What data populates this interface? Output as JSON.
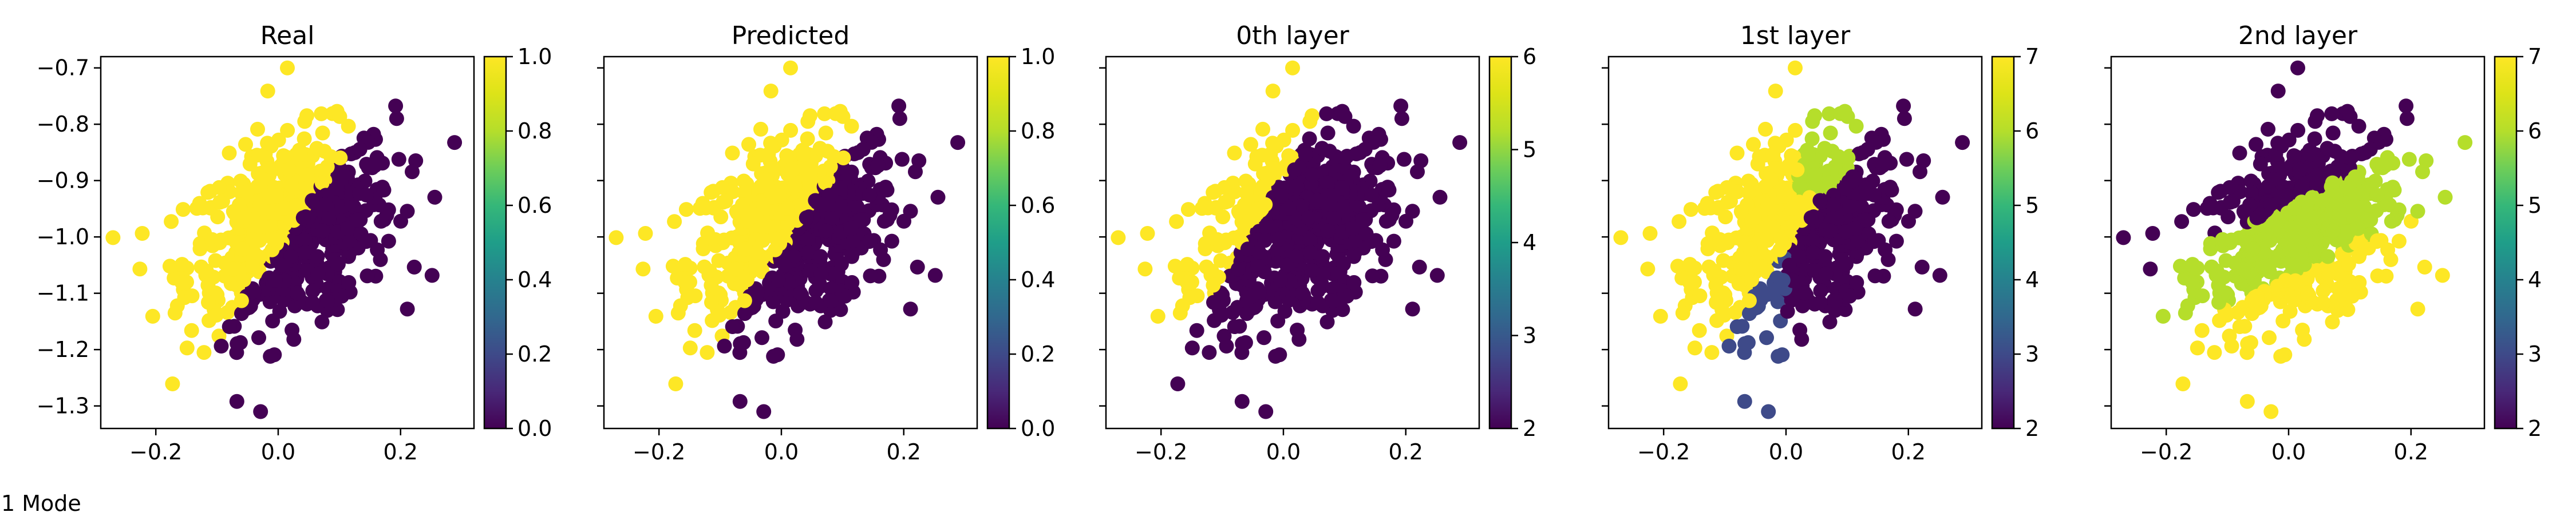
{
  "caption": "1 Mode",
  "colormap": "viridis",
  "colors": {
    "viridis_low": "#440154",
    "viridis_mid": "#21918c",
    "viridis_high": "#fde725"
  },
  "chart_data": [
    {
      "type": "scatter",
      "title": "Real",
      "xlim": [
        -0.29,
        0.32
      ],
      "ylim": [
        -1.34,
        -0.68
      ],
      "xticks": [
        -0.2,
        0.0,
        0.2
      ],
      "xtick_labels": [
        "−0.2",
        "0.0",
        "0.2"
      ],
      "yticks": [
        -0.7,
        -0.8,
        -0.9,
        -1.0,
        -1.1,
        -1.2,
        -1.3
      ],
      "ytick_labels": [
        "−0.7",
        "−0.8",
        "−0.9",
        "−1.0",
        "−1.1",
        "−1.2",
        "−1.3"
      ],
      "show_yticklabels": true,
      "colorbar": {
        "min": 0.0,
        "max": 1.0,
        "ticks": [
          0.0,
          0.2,
          0.4,
          0.6,
          0.8,
          1.0
        ],
        "tick_labels": [
          "0.0",
          "0.2",
          "0.4",
          "0.6",
          "0.8",
          "1.0"
        ]
      },
      "legend": "none",
      "grid": false
    },
    {
      "type": "scatter",
      "title": "Predicted",
      "xlim": [
        -0.29,
        0.32
      ],
      "ylim": [
        -1.34,
        -0.68
      ],
      "xticks": [
        -0.2,
        0.0,
        0.2
      ],
      "xtick_labels": [
        "−0.2",
        "0.0",
        "0.2"
      ],
      "yticks": [
        -0.7,
        -0.8,
        -0.9,
        -1.0,
        -1.1,
        -1.2,
        -1.3
      ],
      "ytick_labels": [],
      "show_yticklabels": false,
      "colorbar": {
        "min": 0.0,
        "max": 1.0,
        "ticks": [
          0.0,
          0.2,
          0.4,
          0.6,
          0.8,
          1.0
        ],
        "tick_labels": [
          "0.0",
          "0.2",
          "0.4",
          "0.6",
          "0.8",
          "1.0"
        ]
      },
      "legend": "none",
      "grid": false
    },
    {
      "type": "scatter",
      "title": "0th layer",
      "xlim": [
        -0.29,
        0.32
      ],
      "ylim": [
        -1.34,
        -0.68
      ],
      "xticks": [
        -0.2,
        0.0,
        0.2
      ],
      "xtick_labels": [
        "−0.2",
        "0.0",
        "0.2"
      ],
      "yticks": [
        -0.7,
        -0.8,
        -0.9,
        -1.0,
        -1.1,
        -1.2,
        -1.3
      ],
      "ytick_labels": [],
      "show_yticklabels": false,
      "colorbar": {
        "min": 2,
        "max": 6,
        "ticks": [
          2,
          3,
          4,
          5,
          6
        ],
        "tick_labels": [
          "2",
          "3",
          "4",
          "5",
          "6"
        ]
      },
      "legend": "none",
      "grid": false
    },
    {
      "type": "scatter",
      "title": "1st layer",
      "xlim": [
        -0.29,
        0.32
      ],
      "ylim": [
        -1.34,
        -0.68
      ],
      "xticks": [
        -0.2,
        0.0,
        0.2
      ],
      "xtick_labels": [
        "−0.2",
        "0.0",
        "0.2"
      ],
      "yticks": [
        -0.7,
        -0.8,
        -0.9,
        -1.0,
        -1.1,
        -1.2,
        -1.3
      ],
      "ytick_labels": [],
      "show_yticklabels": false,
      "colorbar": {
        "min": 2,
        "max": 7,
        "ticks": [
          2,
          3,
          4,
          5,
          6,
          7
        ],
        "tick_labels": [
          "2",
          "3",
          "4",
          "5",
          "6",
          "7"
        ]
      },
      "legend": "none",
      "grid": false
    },
    {
      "type": "scatter",
      "title": "2nd layer",
      "xlim": [
        -0.29,
        0.32
      ],
      "ylim": [
        -1.34,
        -0.68
      ],
      "xticks": [
        -0.2,
        0.0,
        0.2
      ],
      "xtick_labels": [
        "−0.2",
        "0.0",
        "0.2"
      ],
      "yticks": [
        -0.7,
        -0.8,
        -0.9,
        -1.0,
        -1.1,
        -1.2,
        -1.3
      ],
      "ytick_labels": [],
      "show_yticklabels": false,
      "colorbar": {
        "min": 2,
        "max": 7,
        "ticks": [
          2,
          3,
          4,
          5,
          6,
          7
        ],
        "tick_labels": [
          "2",
          "3",
          "4",
          "5",
          "6",
          "7"
        ]
      },
      "legend": "none",
      "grid": false
    }
  ]
}
